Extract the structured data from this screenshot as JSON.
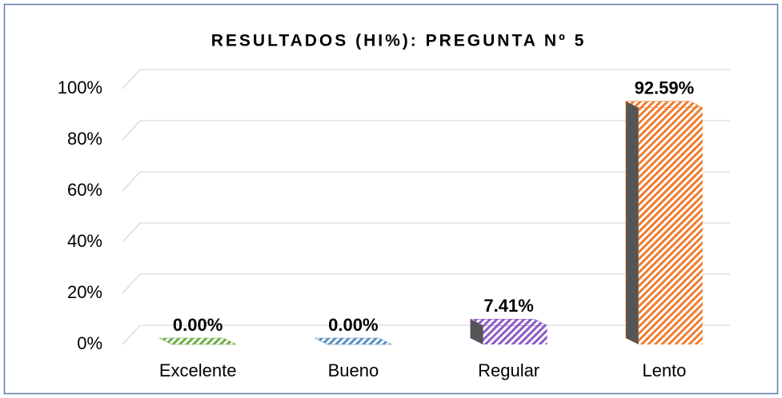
{
  "chart_data": {
    "type": "bar3d",
    "title": "RESULTADOS (HI%): PREGUNTA Nº 5",
    "categories": [
      "Excelente",
      "Bueno",
      "Regular",
      "Lento"
    ],
    "values": [
      0,
      0,
      7.41,
      92.59
    ],
    "value_labels": [
      "0.00%",
      "0.00%",
      "7.41%",
      "92.59%"
    ],
    "colors": [
      "#70ad47",
      "#5b8fc0",
      "#8e5cc4",
      "#ed7d31"
    ],
    "ylim": [
      0,
      100
    ],
    "yticks": [
      {
        "value": 0,
        "label": "0%"
      },
      {
        "value": 20,
        "label": "20%"
      },
      {
        "value": 40,
        "label": "40%"
      },
      {
        "value": 60,
        "label": "60%"
      },
      {
        "value": 80,
        "label": "80%"
      },
      {
        "value": 100,
        "label": "100%"
      }
    ],
    "grid": true
  }
}
